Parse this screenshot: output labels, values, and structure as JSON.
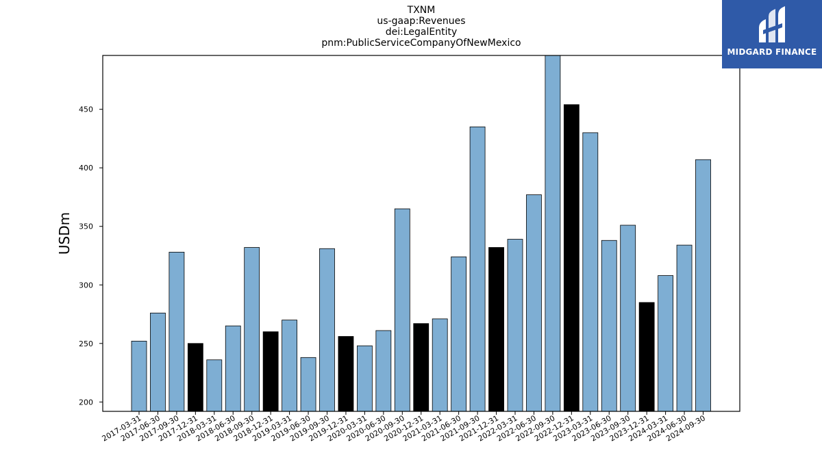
{
  "header": {
    "title_lines": [
      "TXNM",
      "us-gaap:Revenues",
      "dei:LegalEntity",
      "pnm:PublicServiceCompanyOfNewMexico"
    ]
  },
  "logo": {
    "text": "MIDGARD FINANCE",
    "icon": "midgard-logo-icon"
  },
  "colors": {
    "regular": "#7eaed3",
    "year_end": "#000000",
    "logo_bg": "#2f5aa8"
  },
  "chart_data": {
    "type": "bar",
    "ylabel": "USDm",
    "xlabel": "",
    "ylim": [
      192,
      496
    ],
    "yticks": [
      200,
      250,
      300,
      350,
      400,
      450
    ],
    "grid": false,
    "categories": [
      "2017-03-31",
      "2017-06-30",
      "2017-09-30",
      "2017-12-31",
      "2018-03-31",
      "2018-06-30",
      "2018-09-30",
      "2018-12-31",
      "2019-03-31",
      "2019-06-30",
      "2019-09-30",
      "2019-12-31",
      "2020-03-31",
      "2020-06-30",
      "2020-09-30",
      "2020-12-31",
      "2021-03-31",
      "2021-06-30",
      "2021-09-30",
      "2021-12-31",
      "2022-03-31",
      "2022-06-30",
      "2022-09-30",
      "2022-12-31",
      "2023-03-31",
      "2023-06-30",
      "2023-09-30",
      "2023-12-31",
      "2024-03-31",
      "2024-06-30",
      "2024-09-30"
    ],
    "values": [
      252,
      276,
      328,
      250,
      236,
      265,
      332,
      260,
      270,
      238,
      331,
      256,
      248,
      261,
      365,
      267,
      271,
      324,
      435,
      332,
      339,
      377,
      497,
      454,
      430,
      338,
      351,
      285,
      308,
      334,
      407
    ],
    "highlighted": [
      "2017-12-31",
      "2018-12-31",
      "2019-12-31",
      "2020-12-31",
      "2021-12-31",
      "2022-12-31",
      "2023-12-31"
    ]
  }
}
